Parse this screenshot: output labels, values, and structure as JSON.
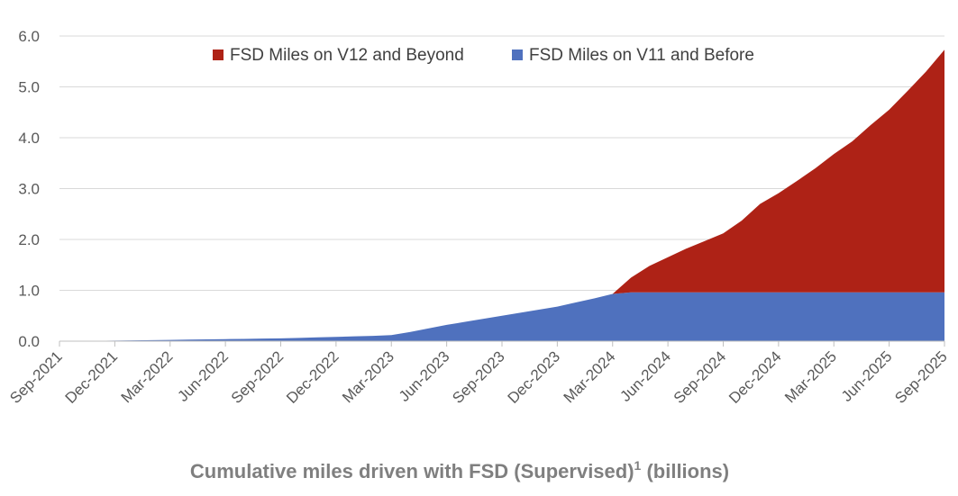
{
  "chart_data": {
    "type": "area",
    "stacked": true,
    "title": "Cumulative miles driven with FSD (Supervised)",
    "title_superscript": "1",
    "title_unit": "(billions)",
    "xlabel": "",
    "ylabel": "",
    "ylim": [
      0,
      6
    ],
    "yticks": [
      "0.0",
      "1.0",
      "2.0",
      "3.0",
      "4.0",
      "5.0",
      "6.0"
    ],
    "x_tick_labels": [
      "Sep-2021",
      "Dec-2021",
      "Mar-2022",
      "Jun-2022",
      "Sep-2022",
      "Dec-2022",
      "Mar-2023",
      "Jun-2023",
      "Sep-2023",
      "Dec-2023",
      "Mar-2024",
      "Jun-2024",
      "Sep-2024",
      "Dec-2024",
      "Mar-2025",
      "Jun-2025",
      "Sep-2025"
    ],
    "x": [
      "Sep-2021",
      "Oct-2021",
      "Nov-2021",
      "Dec-2021",
      "Jan-2022",
      "Feb-2022",
      "Mar-2022",
      "Apr-2022",
      "May-2022",
      "Jun-2022",
      "Jul-2022",
      "Aug-2022",
      "Sep-2022",
      "Oct-2022",
      "Nov-2022",
      "Dec-2022",
      "Jan-2023",
      "Feb-2023",
      "Mar-2023",
      "Apr-2023",
      "May-2023",
      "Jun-2023",
      "Jul-2023",
      "Aug-2023",
      "Sep-2023",
      "Oct-2023",
      "Nov-2023",
      "Dec-2023",
      "Jan-2024",
      "Feb-2024",
      "Mar-2024",
      "Apr-2024",
      "May-2024",
      "Jun-2024",
      "Jul-2024",
      "Aug-2024",
      "Sep-2024",
      "Oct-2024",
      "Nov-2024",
      "Dec-2024",
      "Jan-2025",
      "Feb-2025",
      "Mar-2025",
      "Apr-2025",
      "May-2025",
      "Jun-2025",
      "Jul-2025",
      "Aug-2025",
      "Sep-2025"
    ],
    "grid": true,
    "legend_position": "top",
    "series": [
      {
        "name": "FSD Miles on V11 and Before",
        "color": "#4f71be",
        "values": [
          0.0,
          0.003,
          0.006,
          0.01,
          0.015,
          0.02,
          0.025,
          0.03,
          0.035,
          0.04,
          0.045,
          0.05,
          0.055,
          0.065,
          0.075,
          0.085,
          0.095,
          0.105,
          0.12,
          0.18,
          0.25,
          0.32,
          0.38,
          0.44,
          0.5,
          0.56,
          0.62,
          0.68,
          0.76,
          0.84,
          0.93,
          0.96,
          0.96,
          0.96,
          0.96,
          0.96,
          0.96,
          0.96,
          0.96,
          0.96,
          0.96,
          0.96,
          0.96,
          0.96,
          0.96,
          0.96,
          0.96,
          0.96,
          0.96
        ]
      },
      {
        "name": "FSD Miles on V12 and Beyond",
        "color": "#ae2216",
        "values": [
          0,
          0,
          0,
          0,
          0,
          0,
          0,
          0,
          0,
          0,
          0,
          0,
          0,
          0,
          0,
          0,
          0,
          0,
          0,
          0,
          0,
          0,
          0,
          0,
          0,
          0,
          0,
          0,
          0,
          0,
          0,
          0.29,
          0.52,
          0.69,
          0.86,
          1.01,
          1.16,
          1.41,
          1.74,
          1.95,
          2.19,
          2.44,
          2.72,
          2.97,
          3.29,
          3.59,
          3.96,
          4.34,
          4.77
        ]
      }
    ]
  }
}
